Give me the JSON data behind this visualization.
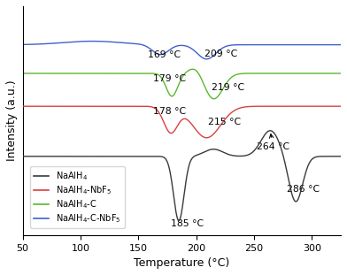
{
  "xlim": [
    50,
    325
  ],
  "xlabel": "Temperature (°C)",
  "ylabel": "Intensity (a.u.)",
  "xticks": [
    50,
    100,
    150,
    200,
    250,
    300
  ],
  "colors": {
    "black": "#3a3a3a",
    "red": "#d94040",
    "green": "#5ab82e",
    "blue": "#4060cc"
  },
  "offsets": {
    "black": 0.0,
    "red": 3.5,
    "green": 5.8,
    "blue": 7.8
  },
  "ylim": [
    -5.5,
    10.5
  ],
  "legend_labels": [
    "NaAlH$_4$",
    "NaAlH$_4$-NbF$_5$",
    "NaAlH$_4$-C",
    "NaAlH$_4$-C-NbF$_5$"
  ],
  "legend_colors": [
    "#3a3a3a",
    "#d94040",
    "#5ab82e",
    "#4060cc"
  ]
}
